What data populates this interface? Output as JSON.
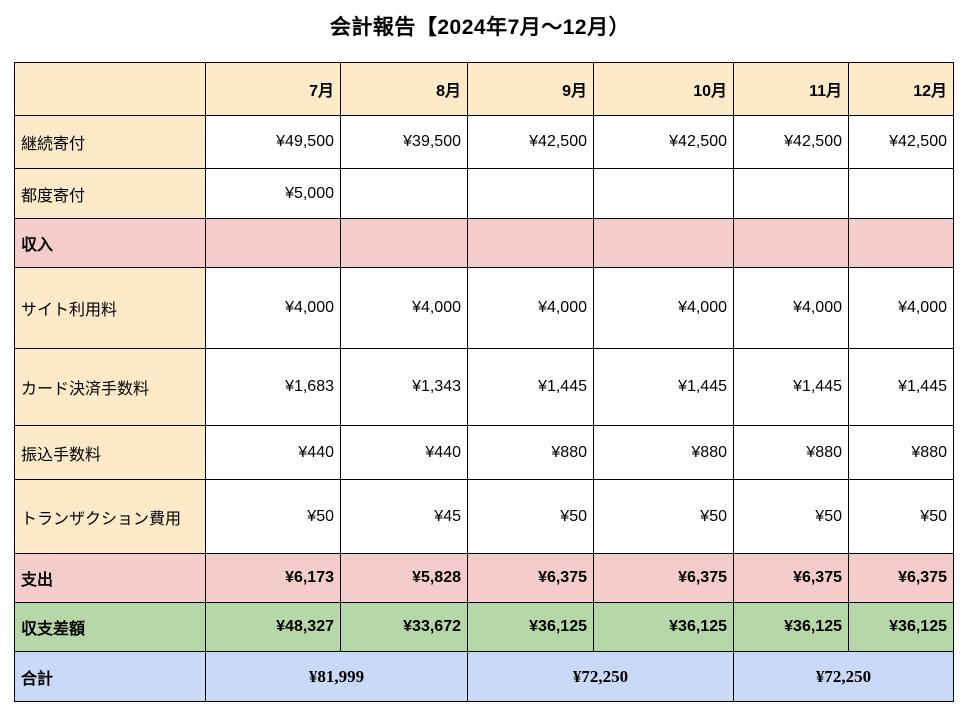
{
  "page": {
    "title": "会計報告【2024年7月〜12月）"
  },
  "colors": {
    "header_bg": "#FCEAC8",
    "income_expense_bg": "#F4CCCC",
    "balance_bg": "#B6D7A8",
    "total_bg": "#C9DAF8",
    "border": "#000000"
  },
  "table": {
    "corner_label": "",
    "months": [
      "7月",
      "8月",
      "9月",
      "10月",
      "11月",
      "12月"
    ],
    "rows": [
      {
        "label": "継続寄付",
        "type": "item",
        "values": [
          "¥49,500",
          "¥39,500",
          "¥42,500",
          "¥42,500",
          "¥42,500",
          "¥42,500"
        ]
      },
      {
        "label": "都度寄付",
        "type": "item",
        "values": [
          "¥5,000",
          "",
          "",
          "",
          "",
          ""
        ]
      },
      {
        "label": "収入",
        "type": "income",
        "values": [
          "",
          "",
          "",
          "",
          "",
          ""
        ]
      },
      {
        "label": "サイト利用料",
        "type": "item",
        "values": [
          "¥4,000",
          "¥4,000",
          "¥4,000",
          "¥4,000",
          "¥4,000",
          "¥4,000"
        ]
      },
      {
        "label": "カード決済手数料",
        "type": "item",
        "values": [
          "¥1,683",
          "¥1,343",
          "¥1,445",
          "¥1,445",
          "¥1,445",
          "¥1,445"
        ]
      },
      {
        "label": "振込手数料",
        "type": "item",
        "values": [
          "¥440",
          "¥440",
          "¥880",
          "¥880",
          "¥880",
          "¥880"
        ]
      },
      {
        "label": "トランザクション費用",
        "type": "item",
        "values": [
          "¥50",
          "¥45",
          "¥50",
          "¥50",
          "¥50",
          "¥50"
        ]
      },
      {
        "label": "支出",
        "type": "expense",
        "values": [
          "¥6,173",
          "¥5,828",
          "¥6,375",
          "¥6,375",
          "¥6,375",
          "¥6,375"
        ]
      },
      {
        "label": "収支差額",
        "type": "balance",
        "values": [
          "¥48,327",
          "¥33,672",
          "¥36,125",
          "¥36,125",
          "¥36,125",
          "¥36,125"
        ]
      }
    ],
    "total_row": {
      "label": "合計",
      "type": "total",
      "columns_per_value": 2,
      "values": [
        "¥81,999",
        "¥72,250",
        "¥72,250"
      ]
    }
  }
}
